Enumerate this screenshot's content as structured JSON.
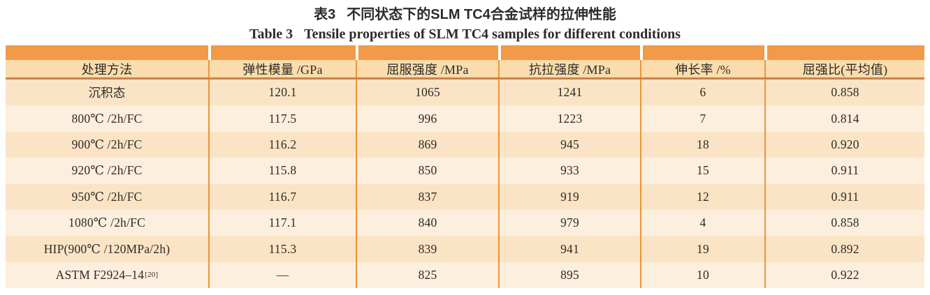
{
  "caption": {
    "zh_label": "表3",
    "zh_text": "不同状态下的SLM TC4合金试样的拉伸性能",
    "en_label": "Table 3",
    "en_text": "Tensile properties of SLM TC4 samples for different conditions"
  },
  "table": {
    "columns": [
      "处理方法",
      "弹性模量 /GPa",
      "屈服强度 /MPa",
      "抗拉强度 /MPa",
      "伸长率 /%",
      "屈强比(平均值)"
    ],
    "rows": [
      {
        "treatment": "沉积态",
        "sup": "",
        "modulus": "120.1",
        "yield_strength": "1065",
        "tensile_strength": "1241",
        "elongation": "6",
        "ratio": "0.858"
      },
      {
        "treatment": "800℃ /2h/FC",
        "sup": "",
        "modulus": "117.5",
        "yield_strength": "996",
        "tensile_strength": "1223",
        "elongation": "7",
        "ratio": "0.814"
      },
      {
        "treatment": "900℃ /2h/FC",
        "sup": "",
        "modulus": "116.2",
        "yield_strength": "869",
        "tensile_strength": "945",
        "elongation": "18",
        "ratio": "0.920"
      },
      {
        "treatment": "920℃ /2h/FC",
        "sup": "",
        "modulus": "115.8",
        "yield_strength": "850",
        "tensile_strength": "933",
        "elongation": "15",
        "ratio": "0.911"
      },
      {
        "treatment": "950℃ /2h/FC",
        "sup": "",
        "modulus": "116.7",
        "yield_strength": "837",
        "tensile_strength": "919",
        "elongation": "12",
        "ratio": "0.911"
      },
      {
        "treatment": "1080℃ /2h/FC",
        "sup": "",
        "modulus": "117.1",
        "yield_strength": "840",
        "tensile_strength": "979",
        "elongation": "4",
        "ratio": "0.858"
      },
      {
        "treatment": "HIP(900℃ /120MPa/2h)",
        "sup": "",
        "modulus": "115.3",
        "yield_strength": "839",
        "tensile_strength": "941",
        "elongation": "19",
        "ratio": "0.892"
      },
      {
        "treatment": "ASTM F2924–14",
        "sup": "[20]",
        "modulus": "—",
        "yield_strength": "825",
        "tensile_strength": "895",
        "elongation": "10",
        "ratio": "0.922"
      }
    ],
    "colors": {
      "accent_bar": "#f19a48",
      "header_bg": "#fbdcad",
      "row_odd_bg": "#fae4c5",
      "row_even_bg": "#fcefdd",
      "divider": "#ef9335",
      "header_underline": "#c8824a"
    }
  }
}
